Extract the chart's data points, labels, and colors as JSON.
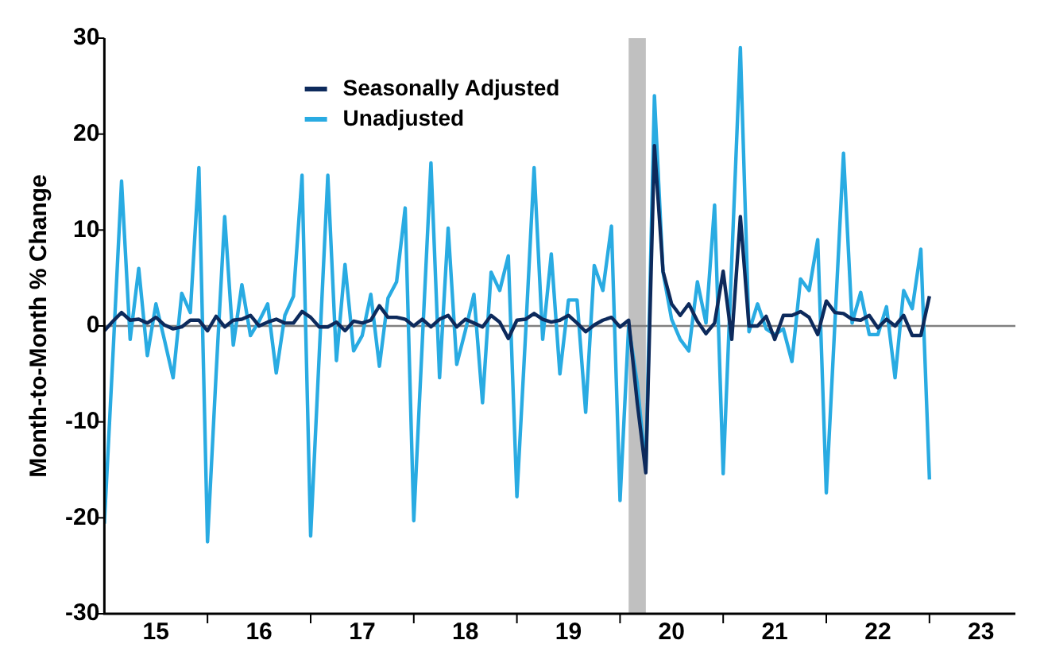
{
  "chart_data": {
    "type": "line",
    "ylabel": "Month-to-Month % Change",
    "x": [
      "2015-01",
      "2015-02",
      "2015-03",
      "2015-04",
      "2015-05",
      "2015-06",
      "2015-07",
      "2015-08",
      "2015-09",
      "2015-10",
      "2015-11",
      "2015-12",
      "2016-01",
      "2016-02",
      "2016-03",
      "2016-04",
      "2016-05",
      "2016-06",
      "2016-07",
      "2016-08",
      "2016-09",
      "2016-10",
      "2016-11",
      "2016-12",
      "2017-01",
      "2017-02",
      "2017-03",
      "2017-04",
      "2017-05",
      "2017-06",
      "2017-07",
      "2017-08",
      "2017-09",
      "2017-10",
      "2017-11",
      "2017-12",
      "2018-01",
      "2018-02",
      "2018-03",
      "2018-04",
      "2018-05",
      "2018-06",
      "2018-07",
      "2018-08",
      "2018-09",
      "2018-10",
      "2018-11",
      "2018-12",
      "2019-01",
      "2019-02",
      "2019-03",
      "2019-04",
      "2019-05",
      "2019-06",
      "2019-07",
      "2019-08",
      "2019-09",
      "2019-10",
      "2019-11",
      "2019-12",
      "2020-01",
      "2020-02",
      "2020-03",
      "2020-04",
      "2020-05",
      "2020-06",
      "2020-07",
      "2020-08",
      "2020-09",
      "2020-10",
      "2020-11",
      "2020-12",
      "2021-01",
      "2021-02",
      "2021-03",
      "2021-04",
      "2021-05",
      "2021-06",
      "2021-07",
      "2021-08",
      "2021-09",
      "2021-10",
      "2021-11",
      "2021-12",
      "2022-01",
      "2022-02",
      "2022-03",
      "2022-04",
      "2022-05",
      "2022-06",
      "2022-07",
      "2022-08",
      "2022-09",
      "2022-10",
      "2022-11",
      "2022-12",
      "2023-01"
    ],
    "series": [
      {
        "name": "Seasonally Adjusted",
        "color": "#0d2a5c",
        "values": [
          -0.5,
          0.5,
          1.4,
          0.6,
          0.7,
          0.3,
          0.9,
          0.1,
          -0.3,
          -0.1,
          0.6,
          0.6,
          -0.5,
          1,
          -0.1,
          0.6,
          0.7,
          1.1,
          0,
          0.4,
          0.7,
          0.3,
          0.3,
          1.5,
          0.9,
          -0.1,
          -0.1,
          0.4,
          -0.5,
          0.5,
          0.3,
          0.6,
          2.1,
          0.9,
          0.9,
          0.7,
          0,
          0.7,
          -0.1,
          0.7,
          1.1,
          -0.1,
          0.7,
          0.3,
          -0.1,
          1.1,
          0.4,
          -1.3,
          0.6,
          0.7,
          1.3,
          0.7,
          0.4,
          0.6,
          1.1,
          0.3,
          -0.6,
          0.1,
          0.6,
          0.9,
          -0.1,
          0.6,
          -8,
          -15.3,
          18.8,
          5.7,
          2.3,
          1.1,
          2.3,
          0.5,
          -0.8,
          0.3,
          5.7,
          -1.4,
          11.4,
          0,
          0,
          1,
          -1.4,
          1.1,
          1.1,
          1.5,
          0.9,
          -0.9,
          2.6,
          1.4,
          1.3,
          0.7,
          0.6,
          1.1,
          -0.2,
          0.7,
          0,
          1.1,
          -1,
          -1,
          3.1
        ]
      },
      {
        "name": "Unadjusted",
        "color": "#29abe2",
        "values": [
          -20.6,
          -3,
          15.1,
          -1.4,
          6,
          -3.1,
          2.3,
          -1.5,
          -5.4,
          3.4,
          1.4,
          16.5,
          -22.5,
          -5,
          11.4,
          -2,
          4.3,
          -1,
          0.5,
          2.3,
          -4.9,
          1.1,
          3.1,
          15.7,
          -21.9,
          -3,
          15.7,
          -3.6,
          6.4,
          -2.6,
          -1,
          3.3,
          -4.2,
          2.9,
          4.6,
          12.3,
          -20.3,
          -1.5,
          17,
          -5.4,
          10.2,
          -4,
          -0.5,
          3.3,
          -8,
          5.6,
          3.7,
          7.3,
          -17.8,
          -1,
          16.5,
          -1.4,
          7.5,
          -5,
          2.7,
          2.7,
          -9,
          6.3,
          3.7,
          10.4,
          -18.2,
          0,
          -6,
          -15,
          24,
          5.6,
          0.7,
          -1.4,
          -2.6,
          4.6,
          0.3,
          12.6,
          -15.4,
          6.8,
          29,
          -0.6,
          2.3,
          -0.3,
          -0.9,
          -0.3,
          -3.7,
          4.9,
          3.7,
          9,
          -17.4,
          0.3,
          18,
          0.3,
          3.5,
          -0.9,
          -0.9,
          2,
          -5.4,
          3.7,
          1.8,
          8,
          -16
        ]
      }
    ],
    "xlim": [
      "2015-01",
      "2023-11"
    ],
    "xticks": [
      {
        "value": "2015-07",
        "label": "15"
      },
      {
        "value": "2016-07",
        "label": "16"
      },
      {
        "value": "2017-07",
        "label": "17"
      },
      {
        "value": "2018-07",
        "label": "18"
      },
      {
        "value": "2019-07",
        "label": "19"
      },
      {
        "value": "2020-07",
        "label": "20"
      },
      {
        "value": "2021-07",
        "label": "21"
      },
      {
        "value": "2022-07",
        "label": "22"
      },
      {
        "value": "2023-07",
        "label": "23"
      },
      {
        "value": "2016-01",
        "label": null
      },
      {
        "value": "2017-01",
        "label": null
      },
      {
        "value": "2018-01",
        "label": null
      },
      {
        "value": "2019-01",
        "label": null
      },
      {
        "value": "2020-01",
        "label": null
      },
      {
        "value": "2021-01",
        "label": null
      },
      {
        "value": "2022-01",
        "label": null
      },
      {
        "value": "2023-01",
        "label": null
      }
    ],
    "ylim": [
      -30,
      30
    ],
    "yticks": [
      -30,
      -20,
      -10,
      0,
      10,
      20,
      30
    ],
    "bands": [
      {
        "axis": "x",
        "from": "2020-02",
        "to": "2020-04",
        "color": "#c0c0c0"
      }
    ],
    "ref_lines": [
      {
        "axis": "y",
        "value": 0,
        "color": "#808080"
      }
    ],
    "grid": false,
    "legend": "top",
    "marker": "none",
    "line_style": "solid"
  }
}
